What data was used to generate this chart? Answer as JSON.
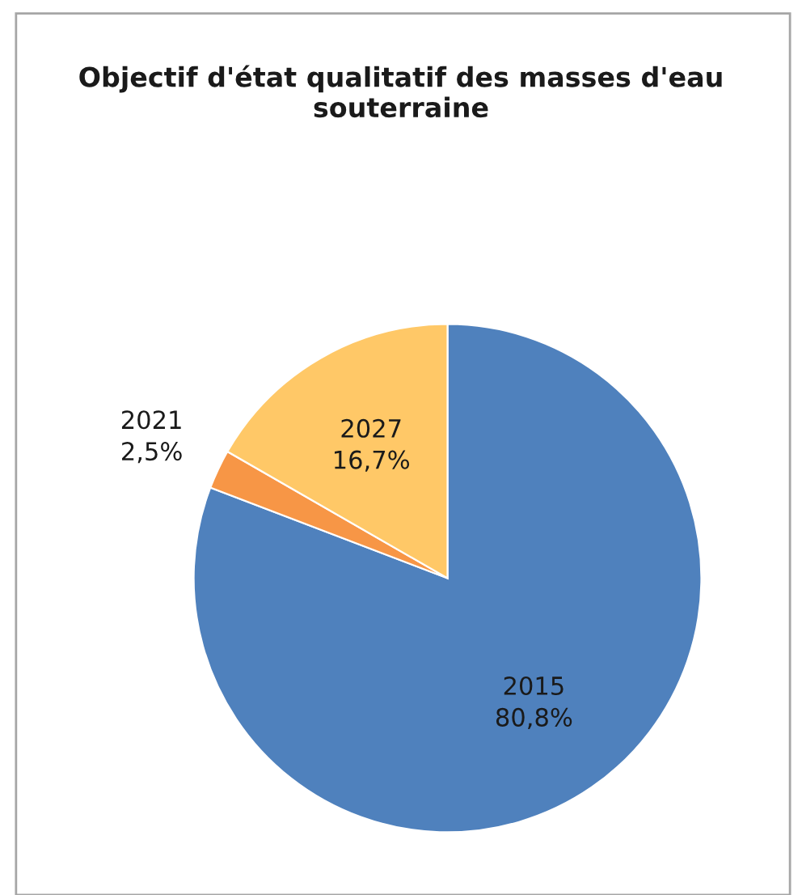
{
  "chart_data": {
    "type": "pie",
    "title": "Objectif d'état qualitatif des masses d'eau souterraine",
    "categories": [
      "2015",
      "2021",
      "2027"
    ],
    "values": [
      80.8,
      2.5,
      16.7
    ],
    "colors": [
      "#4f81bd",
      "#f79646",
      "#ffc867"
    ],
    "value_labels": [
      "80,8%",
      "2,5%",
      "16,7%"
    ],
    "legend": false
  }
}
